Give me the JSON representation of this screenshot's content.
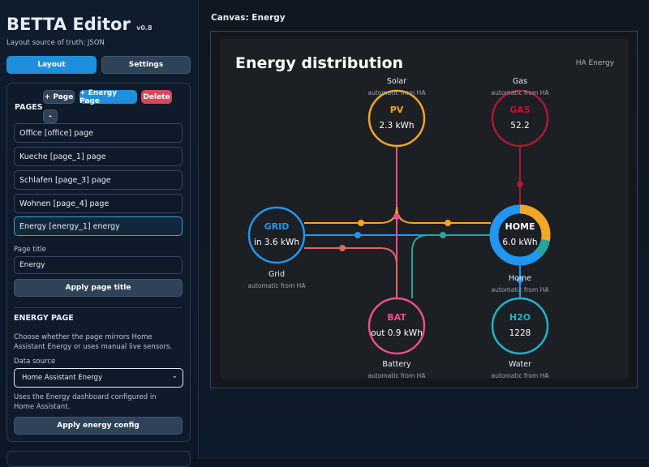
{
  "header": {
    "title": "BETTA Editor",
    "version": "v0.8",
    "subtitle": "Layout source of truth: JSON"
  },
  "tabs": [
    "Layout",
    "Settings"
  ],
  "pages_panel": {
    "heading": "PAGES",
    "buttons": [
      "+ Page",
      "+ Energy Page",
      "Delete",
      "-"
    ],
    "items": [
      "Office [office] page",
      "Kueche [page_1] page",
      "Schlafen [page_3] page",
      "Wohnen [page_4] page",
      "Energy [energy_1] energy"
    ]
  },
  "page_title": {
    "label": "Page title",
    "value": "Energy",
    "button": "Apply page title"
  },
  "energy_page": {
    "heading": "ENERGY PAGE",
    "description": "Choose whether the page mirrors Home Assistant Energy or uses manual live sensors.",
    "data_source_label": "Data source",
    "data_source_value": "Home Assistant Energy",
    "note": "Uses the Energy dashboard configured in Home Assistant.",
    "button": "Apply energy config"
  },
  "canvas": {
    "label": "Canvas: Energy",
    "title": "Energy distribution",
    "badge": "HA Energy",
    "nodes": [
      {
        "label": "Solar",
        "caption": "automatic from HA",
        "name": "PV",
        "value": "2.3 kWh"
      },
      {
        "label": "Gas",
        "caption": "automatic from HA",
        "name": "GAS",
        "value": 52.2
      },
      {
        "label": "Grid",
        "caption": "automatic from HA",
        "name": "GRID",
        "value": "in 3.6 kWh"
      },
      {
        "label": "Home",
        "caption": "automatic from HA",
        "name": "HOME",
        "value": "6.0 kWh"
      },
      {
        "label": "Battery",
        "caption": "automatic from HA",
        "name": "BAT",
        "value": "out 0.9 kWh"
      },
      {
        "label": "Water",
        "caption": "automatic from HA",
        "name": "H2O",
        "value": 1228
      }
    ]
  }
}
